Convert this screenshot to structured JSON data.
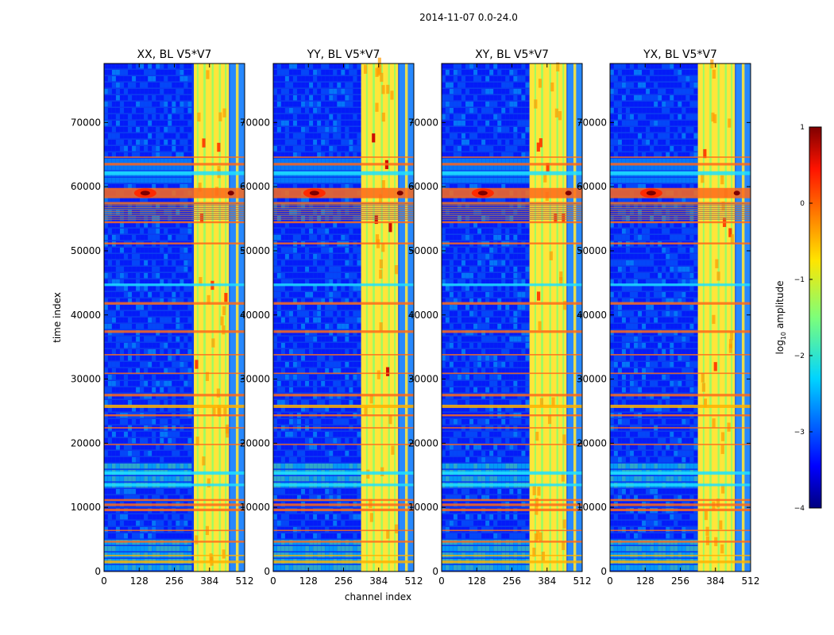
{
  "figure": {
    "suptitle": "2014-11-07 0.0-24.0"
  },
  "chart_data": {
    "type": "heatmap",
    "shared_xlabel": "channel index",
    "shared_ylabel": "time index",
    "x_ticks": [
      "0",
      "128",
      "256",
      "384",
      "512"
    ],
    "y_ticks": [
      "0",
      "10000",
      "20000",
      "30000",
      "40000",
      "50000",
      "60000",
      "70000"
    ],
    "xlim": [
      0,
      512
    ],
    "ylim": [
      0,
      79200
    ],
    "colorscale": "jet",
    "panels": [
      {
        "title": "XX, BL V5*V7",
        "polarization": "XX",
        "baseline": "V5*V7"
      },
      {
        "title": "YY, BL V5*V7",
        "polarization": "YY",
        "baseline": "V5*V7"
      },
      {
        "title": "XY, BL V5*V7",
        "polarization": "XY",
        "baseline": "V5*V7"
      },
      {
        "title": "YX, BL V5*V7",
        "polarization": "YX",
        "baseline": "V5*V7"
      }
    ],
    "colorbar": {
      "label_main": "log",
      "label_sub": "10",
      "label_rest": " amplitude",
      "range": [
        -4,
        1
      ],
      "ticks": [
        "1",
        "0",
        "−1",
        "−2",
        "−3",
        "−4"
      ]
    }
  }
}
